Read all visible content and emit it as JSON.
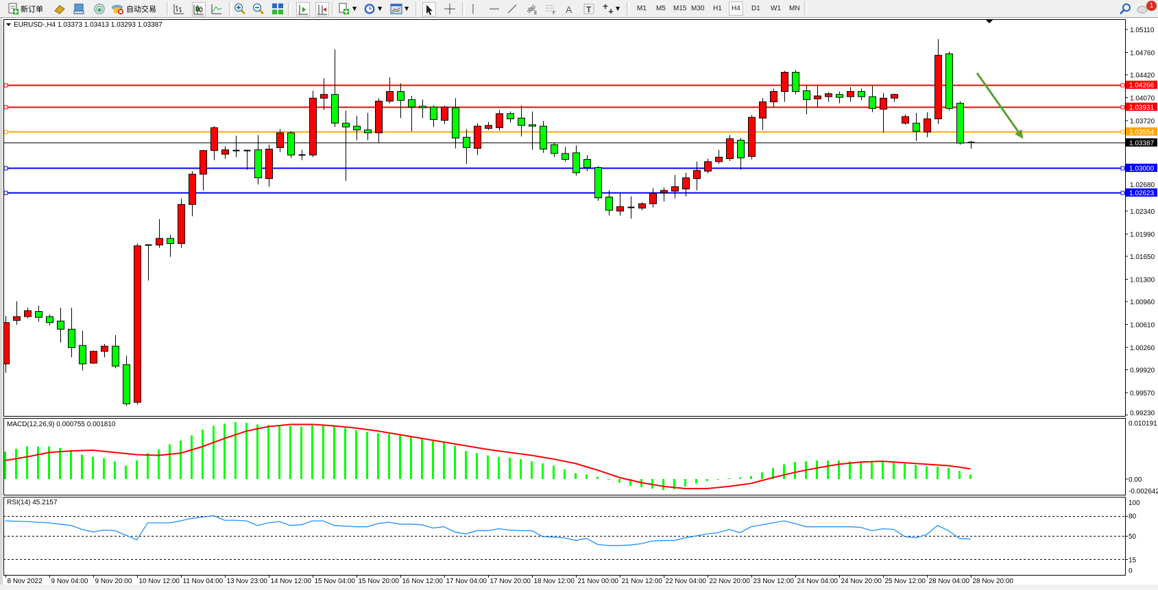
{
  "toolbar": {
    "new_order_label": "新订单",
    "auto_trading_label": "自动交易",
    "timeframes": [
      "M1",
      "M5",
      "M15",
      "M30",
      "H1",
      "H4",
      "D1",
      "W1",
      "MN"
    ],
    "selected_timeframe": "H4",
    "notification_count": "1",
    "icons": [
      "new-order-icon",
      "history-icon",
      "market-watch-icon",
      "signals-icon",
      "auto-trading-icon",
      "bar-chart-icon",
      "candlestick-icon",
      "line-chart-icon",
      "zoom-in-icon",
      "zoom-out-icon",
      "tile-windows-icon",
      "auto-scroll-icon",
      "chart-shift-icon",
      "indicators-icon",
      "periods-icon",
      "templates-icon",
      "cursor-icon",
      "crosshair-icon",
      "vertical-line-icon",
      "horizontal-line-icon",
      "trendline-icon",
      "fibonacci-expansion-icon",
      "fibonacci-fan-icon",
      "text-icon",
      "text-label-icon",
      "arrows-icon",
      "search-icon",
      "notifications-icon"
    ]
  },
  "chart": {
    "header": "EURUSD-,H4  1.03373 1.03413 1.03293 1.03387",
    "symbol": "EURUSD-",
    "timeframe": "H4",
    "ohlc": {
      "open": 1.03373,
      "high": 1.03413,
      "low": 1.03293,
      "close": 1.03387
    },
    "up_color": "#ff0000",
    "down_color": "#00ff00"
  },
  "chart_data": {
    "type": "candlestick",
    "x_tick_labels": [
      "8 Nov 2022",
      "9 Nov 04:00",
      "9 Nov 20:00",
      "10 Nov 12:00",
      "11 Nov 04:00",
      "13 Nov 23:00",
      "14 Nov 12:00",
      "15 Nov 04:00",
      "15 Nov 20:00",
      "16 Nov 12:00",
      "17 Nov 04:00",
      "17 Nov 20:00",
      "18 Nov 12:00",
      "21 Nov 00:00",
      "21 Nov 12:00",
      "22 Nov 04:00",
      "22 Nov 20:00",
      "23 Nov 12:00",
      "24 Nov 04:00",
      "24 Nov 20:00",
      "25 Nov 12:00",
      "28 Nov 04:00",
      "28 Nov 20:00"
    ],
    "price_axis_ticks": [
      "1.05110",
      "1.04760",
      "1.04420",
      "1.04070",
      "1.03720",
      "1.02680",
      "1.02340",
      "1.01990",
      "1.01650",
      "1.01300",
      "1.00960",
      "1.00610",
      "1.00260",
      "0.99920",
      "0.99570",
      "0.99230"
    ],
    "price_range": [
      0.9923,
      1.0511
    ],
    "candles_ohlc": [
      [
        1.00009,
        1.00741,
        0.99874,
        1.00639
      ],
      [
        1.00673,
        1.00966,
        1.00606,
        1.0073
      ],
      [
        1.0073,
        1.00865,
        1.00707,
        1.0082
      ],
      [
        1.00808,
        1.00898,
        1.00651,
        1.00718
      ],
      [
        1.0073,
        1.00763,
        1.00594,
        1.00639
      ],
      [
        1.00662,
        1.00865,
        1.00335,
        1.00538
      ],
      [
        1.00538,
        1.00865,
        1.0011,
        1.00257
      ],
      [
        1.0029,
        1.00516,
        0.99908,
        1.00009
      ],
      [
        1.0002,
        1.00212,
        1.00009,
        1.002
      ],
      [
        1.002,
        1.00313,
        1.0011,
        1.00279
      ],
      [
        1.00279,
        1.00448,
        0.99941,
        0.99975
      ],
      [
        0.99998,
        1.00133,
        0.99367,
        0.99401
      ],
      [
        0.99423,
        1.01844,
        0.9939,
        1.0181
      ],
      [
        1.01822,
        1.01822,
        1.01281,
        1.0182
      ],
      [
        1.01822,
        1.02218,
        1.01777,
        1.01923
      ],
      [
        1.01923,
        1.01979,
        1.01642,
        1.01844
      ],
      [
        1.01844,
        1.02531,
        1.01777,
        1.02441
      ],
      [
        1.02441,
        1.02948,
        1.02261,
        1.02903
      ],
      [
        1.02903,
        1.03274,
        1.02655,
        1.03263
      ],
      [
        1.03263,
        1.03635,
        1.03117,
        1.03612
      ],
      [
        1.03207,
        1.03331,
        1.03139,
        1.03274
      ],
      [
        1.03263,
        1.03488,
        1.03162,
        1.03263
      ],
      [
        1.03263,
        1.03274,
        1.0297,
        1.03263
      ],
      [
        1.03274,
        1.03499,
        1.02745,
        1.02847
      ],
      [
        1.02835,
        1.03353,
        1.02712,
        1.03285
      ],
      [
        1.03308,
        1.0359,
        1.0324,
        1.03533
      ],
      [
        1.03533,
        1.03556,
        1.0315,
        1.03195
      ],
      [
        1.03195,
        1.03274,
        1.03117,
        1.03195
      ],
      [
        1.03195,
        1.04175,
        1.03162,
        1.04062
      ],
      [
        1.04062,
        1.04366,
        1.03882,
        1.04119
      ],
      [
        1.04119,
        1.04806,
        1.03623,
        1.0368
      ],
      [
        1.0368,
        1.03871,
        1.02801,
        1.03623
      ],
      [
        1.03635,
        1.03792,
        1.03421,
        1.03578
      ],
      [
        1.03578,
        1.03837,
        1.03421,
        1.03533
      ],
      [
        1.03533,
        1.04062,
        1.03387,
        1.04017
      ],
      [
        1.04017,
        1.04378,
        1.03984,
        1.04164
      ],
      [
        1.04164,
        1.04288,
        1.03758,
        1.04029
      ],
      [
        1.0404,
        1.04096,
        1.03556,
        1.03927
      ],
      [
        1.03939,
        1.0404,
        1.03758,
        1.03916
      ],
      [
        1.03927,
        1.0395,
        1.03623,
        1.03736
      ],
      [
        1.03725,
        1.0395,
        1.03668,
        1.03927
      ],
      [
        1.03916,
        1.04062,
        1.03297,
        1.03454
      ],
      [
        1.03466,
        1.0359,
        1.0306,
        1.03308
      ],
      [
        1.03297,
        1.0368,
        1.03195,
        1.03635
      ],
      [
        1.03601,
        1.03702,
        1.03578,
        1.03646
      ],
      [
        1.03612,
        1.03882,
        1.03567,
        1.03826
      ],
      [
        1.03826,
        1.0386,
        1.03691,
        1.03747
      ],
      [
        1.03758,
        1.0395,
        1.03477,
        1.03646
      ],
      [
        1.03657,
        1.0386,
        1.03274,
        1.03635
      ],
      [
        1.03635,
        1.03714,
        1.03229,
        1.03285
      ],
      [
        1.03353,
        1.03387,
        1.03162,
        1.03218
      ],
      [
        1.03218,
        1.03319,
        1.03094,
        1.03128
      ],
      [
        1.03229,
        1.03342,
        1.0288,
        1.02925
      ],
      [
        1.03128,
        1.03195,
        1.02948,
        1.03004
      ],
      [
        1.03004,
        1.03027,
        1.02497,
        1.02542
      ],
      [
        1.02554,
        1.02655,
        1.02272,
        1.02351
      ],
      [
        1.0234,
        1.0261,
        1.02272,
        1.02407
      ],
      [
        1.02396,
        1.02565,
        1.02227,
        1.02396
      ],
      [
        1.02385,
        1.02475,
        1.02351,
        1.02452
      ],
      [
        1.02452,
        1.02689,
        1.02396,
        1.0261
      ],
      [
        1.02621,
        1.027,
        1.02486,
        1.02655
      ],
      [
        1.02644,
        1.02891,
        1.02531,
        1.02712
      ],
      [
        1.02677,
        1.02925,
        1.02565,
        1.02847
      ],
      [
        1.02835,
        1.03094,
        1.02655,
        1.02959
      ],
      [
        1.02948,
        1.03139,
        1.02914,
        1.03094
      ],
      [
        1.03094,
        1.03274,
        1.0306,
        1.03162
      ],
      [
        1.03139,
        1.03499,
        1.03105,
        1.03443
      ],
      [
        1.03421,
        1.03454,
        1.0297,
        1.0315
      ],
      [
        1.03173,
        1.03804,
        1.03128,
        1.0377
      ],
      [
        1.03758,
        1.04062,
        1.03578,
        1.04006
      ],
      [
        1.04006,
        1.04209,
        1.03927,
        1.04164
      ],
      [
        1.04164,
        1.04479,
        1.04006,
        1.04457
      ],
      [
        1.04457,
        1.0449,
        1.04119,
        1.04164
      ],
      [
        1.04175,
        1.04265,
        1.03815,
        1.0404
      ],
      [
        1.04051,
        1.04254,
        1.03927,
        1.04096
      ],
      [
        1.04085,
        1.04153,
        1.04006,
        1.0413
      ],
      [
        1.04119,
        1.04164,
        1.03984,
        1.04074
      ],
      [
        1.04085,
        1.04231,
        1.04006,
        1.04164
      ],
      [
        1.04164,
        1.04209,
        1.04029,
        1.04085
      ],
      [
        1.04085,
        1.04254,
        1.03849,
        1.03905
      ],
      [
        1.03894,
        1.04141,
        1.03533,
        1.04062
      ],
      [
        1.04062,
        1.0413,
        1.04006,
        1.04119
      ],
      [
        1.0368,
        1.03815,
        1.03657,
        1.03781
      ],
      [
        1.0368,
        1.03837,
        1.03409,
        1.03556
      ],
      [
        1.03545,
        1.03849,
        1.03466,
        1.03747
      ],
      [
        1.03747,
        1.04963,
        1.03668,
        1.04716
      ],
      [
        1.04738,
        1.04772,
        1.03871,
        1.03905
      ],
      [
        1.03984,
        1.04017,
        1.03353,
        1.03376
      ],
      [
        1.03373,
        1.03413,
        1.03293,
        1.03387
      ]
    ],
    "horizontal_lines": [
      {
        "price": "1.04266",
        "color": "#ff0000"
      },
      {
        "price": "1.03931",
        "color": "#ff0000"
      },
      {
        "price": "1.03554",
        "color": "#ffa500"
      },
      {
        "price": "1.03387",
        "color": "#000000",
        "bid": true
      },
      {
        "price": "1.03000",
        "color": "#0000ff"
      },
      {
        "price": "1.02623",
        "color": "#0000ff"
      }
    ],
    "arrow": {
      "color": "#5a9e32",
      "from_price": 1.04445,
      "to_price": 1.03443
    },
    "macd": {
      "label": "MACD(12,26,9) 0.000755 0.001810",
      "axis_ticks": [
        "0.010191",
        "0.00",
        "-0.002642"
      ],
      "range": [
        -0.002642,
        0.010191
      ],
      "histogram_color": "#00ff00",
      "signal_color": "#ff0000",
      "histogram": [
        0.00489,
        0.00542,
        0.00582,
        0.00582,
        0.00582,
        0.00555,
        0.00502,
        0.00436,
        0.00397,
        0.0037,
        0.00317,
        0.00238,
        0.00331,
        0.00463,
        0.00529,
        0.00621,
        0.00687,
        0.0078,
        0.00886,
        0.00952,
        0.00992,
        0.01018,
        0.01005,
        0.00978,
        0.00965,
        0.00965,
        0.00952,
        0.00939,
        0.00965,
        0.00978,
        0.00952,
        0.00912,
        0.00873,
        0.00846,
        0.0082,
        0.00806,
        0.00793,
        0.00754,
        0.00727,
        0.00687,
        0.00648,
        0.00595,
        0.00502,
        0.00463,
        0.00423,
        0.00397,
        0.00383,
        0.00357,
        0.00317,
        0.00278,
        0.00238,
        0.00172,
        0.00106,
        0.00079,
        0.0004,
        -0.00013,
        -0.00066,
        -0.00119,
        -0.00145,
        -0.00172,
        -0.00198,
        -0.00185,
        -0.00132,
        -0.00079,
        -0.0004,
        -0.00013,
        0.00013,
        0.00026,
        0.00053,
        0.00119,
        0.00198,
        0.00264,
        0.00304,
        0.00317,
        0.00331,
        0.00331,
        0.00331,
        0.00317,
        0.00317,
        0.00317,
        0.00304,
        0.00304,
        0.00278,
        0.00251,
        0.00225,
        0.00225,
        0.00198,
        0.00145,
        0.000755
      ],
      "signal": [
        0.00331,
        0.00364,
        0.00397,
        0.00436,
        0.00476,
        0.00489,
        0.00502,
        0.00509,
        0.00516,
        0.00496,
        0.00476,
        0.00456,
        0.00436,
        0.0043,
        0.00423,
        0.00443,
        0.00463,
        0.00522,
        0.00582,
        0.00654,
        0.00727,
        0.00793,
        0.00859,
        0.00899,
        0.00939,
        0.00958,
        0.00978,
        0.00978,
        0.00978,
        0.00965,
        0.00952,
        0.00932,
        0.00912,
        0.00886,
        0.00859,
        0.00826,
        0.00793,
        0.0076,
        0.00727,
        0.00694,
        0.00661,
        0.00628,
        0.00595,
        0.00562,
        0.00529,
        0.00502,
        0.00476,
        0.00449,
        0.00423,
        0.0039,
        0.00357,
        0.00317,
        0.00278,
        0.00218,
        0.00159,
        0.00093,
        0.00026,
        -0.0002,
        -0.00066,
        -0.00099,
        -0.00132,
        -0.00152,
        -0.00172,
        -0.00172,
        -0.00172,
        -0.00152,
        -0.00132,
        -0.00106,
        -0.00079,
        -0.00026,
        0.00026,
        0.00073,
        0.00119,
        0.00159,
        0.00198,
        0.00231,
        0.00264,
        0.00284,
        0.00304,
        0.00311,
        0.00317,
        0.00304,
        0.00291,
        0.00278,
        0.00264,
        0.00251,
        0.00238,
        0.00212,
        0.00181
      ]
    },
    "rsi": {
      "label": "RSI(14) 45.2157",
      "axis_ticks": [
        "100",
        "80",
        "50",
        "15",
        "0"
      ],
      "levels": [
        80,
        50,
        15
      ],
      "range": [
        0,
        100
      ],
      "color": "#1e90ff",
      "values": [
        72.3,
        71.8,
        71.3,
        70.3,
        69.4,
        67.4,
        65.5,
        59.7,
        55.8,
        58.7,
        57.7,
        51.0,
        44.2,
        69.4,
        69.4,
        69.4,
        72.3,
        76.1,
        78.1,
        80.0,
        73.2,
        73.2,
        72.3,
        65.5,
        69.4,
        71.3,
        65.5,
        66.5,
        72.3,
        72.3,
        65.5,
        64.5,
        63.6,
        63.6,
        68.4,
        70.3,
        67.4,
        67.4,
        66.5,
        61.6,
        63.6,
        55.8,
        52.9,
        57.7,
        57.7,
        60.6,
        58.7,
        57.7,
        57.7,
        49.0,
        48.1,
        47.1,
        43.2,
        46.1,
        37.4,
        35.5,
        35.5,
        36.4,
        38.4,
        42.3,
        43.2,
        43.2,
        47.1,
        50.0,
        52.9,
        54.8,
        59.7,
        54.8,
        63.6,
        66.5,
        69.4,
        72.3,
        68.4,
        63.6,
        63.6,
        63.6,
        63.6,
        63.6,
        62.6,
        57.7,
        60.6,
        59.7,
        49.0,
        47.1,
        51.9,
        65.5,
        57.7,
        46.1,
        45.2157
      ]
    }
  }
}
